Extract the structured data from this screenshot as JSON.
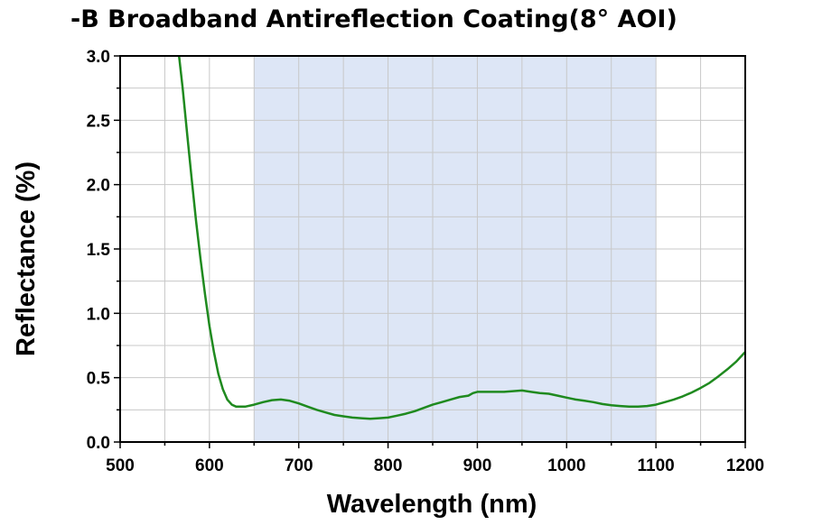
{
  "chart_data": {
    "type": "line",
    "title": "-B Broadband Antireflection Coating(8° AOI)",
    "xlabel": "Wavelength (nm)",
    "ylabel": "Reflectance (%)",
    "xlim": [
      500,
      1200
    ],
    "ylim": [
      0,
      3.0
    ],
    "x_ticks": [
      500,
      600,
      700,
      800,
      900,
      1000,
      1100,
      1200
    ],
    "x_tick_labels": [
      "500",
      "600",
      "700",
      "800",
      "900",
      "1000",
      "1100",
      "1200"
    ],
    "y_ticks": [
      0,
      0.5,
      1.0,
      1.5,
      2.0,
      2.5,
      3.0
    ],
    "y_tick_labels": [
      "0.0",
      "0.5",
      "1.0",
      "1.5",
      "2.0",
      "2.5",
      "3.0"
    ],
    "grid": true,
    "shaded_band": {
      "x_range": [
        650,
        1100
      ],
      "color": "#dde6f6"
    },
    "series": [
      {
        "color": "#1f8a1f",
        "x": [
          566,
          570,
          575,
          580,
          585,
          590,
          595,
          600,
          605,
          610,
          615,
          620,
          625,
          630,
          640,
          650,
          660,
          670,
          680,
          690,
          700,
          710,
          720,
          730,
          740,
          750,
          760,
          770,
          780,
          790,
          800,
          810,
          820,
          830,
          840,
          850,
          860,
          870,
          880,
          890,
          895,
          900,
          910,
          920,
          930,
          940,
          950,
          960,
          970,
          980,
          990,
          1000,
          1010,
          1020,
          1030,
          1040,
          1050,
          1060,
          1070,
          1080,
          1090,
          1100,
          1110,
          1120,
          1130,
          1140,
          1150,
          1160,
          1170,
          1180,
          1190,
          1200
        ],
        "y": [
          3.0,
          2.75,
          2.4,
          2.05,
          1.72,
          1.42,
          1.15,
          0.9,
          0.7,
          0.53,
          0.41,
          0.33,
          0.29,
          0.275,
          0.275,
          0.29,
          0.31,
          0.325,
          0.33,
          0.32,
          0.3,
          0.275,
          0.25,
          0.23,
          0.21,
          0.2,
          0.19,
          0.185,
          0.18,
          0.185,
          0.19,
          0.205,
          0.22,
          0.24,
          0.265,
          0.29,
          0.31,
          0.33,
          0.35,
          0.36,
          0.38,
          0.39,
          0.39,
          0.39,
          0.39,
          0.395,
          0.4,
          0.39,
          0.38,
          0.375,
          0.36,
          0.345,
          0.33,
          0.32,
          0.31,
          0.295,
          0.285,
          0.28,
          0.275,
          0.275,
          0.28,
          0.29,
          0.31,
          0.33,
          0.355,
          0.385,
          0.42,
          0.46,
          0.51,
          0.565,
          0.625,
          0.7
        ]
      }
    ]
  }
}
